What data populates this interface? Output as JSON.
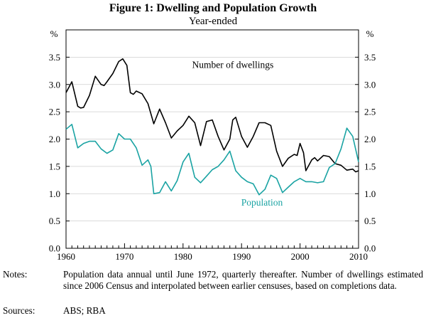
{
  "chart_data": {
    "type": "line",
    "title": "Figure 1: Dwelling and Population Growth",
    "subtitle": "Year-ended",
    "y_unit_left": "%",
    "y_unit_right": "%",
    "ylim": [
      0,
      4
    ],
    "yticks": [
      "0.0",
      "0.5",
      "1.0",
      "1.5",
      "2.0",
      "2.5",
      "3.0",
      "3.5"
    ],
    "xlim": [
      1960,
      2010
    ],
    "xticks": [
      "1960",
      "1970",
      "1980",
      "1990",
      "2000",
      "2010"
    ],
    "grid": true,
    "series": [
      {
        "name": "Number of dwellings",
        "color": "#000000",
        "points": [
          [
            1960,
            2.85
          ],
          [
            1961,
            3.05
          ],
          [
            1962,
            2.6
          ],
          [
            1962.5,
            2.57
          ],
          [
            1963,
            2.58
          ],
          [
            1964,
            2.8
          ],
          [
            1965,
            3.15
          ],
          [
            1966,
            3.0
          ],
          [
            1966.5,
            2.98
          ],
          [
            1967,
            3.05
          ],
          [
            1968,
            3.2
          ],
          [
            1969,
            3.42
          ],
          [
            1969.7,
            3.47
          ],
          [
            1970.4,
            3.35
          ],
          [
            1971,
            2.85
          ],
          [
            1971.5,
            2.82
          ],
          [
            1972,
            2.88
          ],
          [
            1973,
            2.83
          ],
          [
            1974,
            2.65
          ],
          [
            1975,
            2.28
          ],
          [
            1976,
            2.55
          ],
          [
            1977,
            2.3
          ],
          [
            1978,
            2.02
          ],
          [
            1979,
            2.15
          ],
          [
            1980,
            2.25
          ],
          [
            1981,
            2.42
          ],
          [
            1982,
            2.3
          ],
          [
            1983,
            1.88
          ],
          [
            1984,
            2.32
          ],
          [
            1985,
            2.35
          ],
          [
            1986,
            2.05
          ],
          [
            1987,
            1.8
          ],
          [
            1988,
            2.0
          ],
          [
            1988.5,
            2.35
          ],
          [
            1989,
            2.4
          ],
          [
            1990,
            2.05
          ],
          [
            1991,
            1.85
          ],
          [
            1992,
            2.05
          ],
          [
            1993,
            2.3
          ],
          [
            1994,
            2.3
          ],
          [
            1995,
            2.25
          ],
          [
            1996,
            1.78
          ],
          [
            1997,
            1.5
          ],
          [
            1998,
            1.65
          ],
          [
            1999,
            1.72
          ],
          [
            1999.5,
            1.7
          ],
          [
            2000,
            1.92
          ],
          [
            2000.6,
            1.75
          ],
          [
            2001,
            1.42
          ],
          [
            2002,
            1.62
          ],
          [
            2002.5,
            1.66
          ],
          [
            2003,
            1.6
          ],
          [
            2004,
            1.7
          ],
          [
            2005,
            1.68
          ],
          [
            2006,
            1.55
          ],
          [
            2007,
            1.52
          ],
          [
            2008,
            1.43
          ],
          [
            2009,
            1.45
          ],
          [
            2009.5,
            1.4
          ],
          [
            2010,
            1.42
          ]
        ]
      },
      {
        "name": "Population",
        "color": "#1aa3a3",
        "points": [
          [
            1960,
            2.18
          ],
          [
            1961,
            2.27
          ],
          [
            1962,
            1.84
          ],
          [
            1963,
            1.92
          ],
          [
            1964,
            1.96
          ],
          [
            1965,
            1.96
          ],
          [
            1966,
            1.82
          ],
          [
            1967,
            1.74
          ],
          [
            1968,
            1.8
          ],
          [
            1969,
            2.1
          ],
          [
            1970,
            2.0
          ],
          [
            1971,
            2.0
          ],
          [
            1972,
            1.84
          ],
          [
            1973,
            1.52
          ],
          [
            1974,
            1.62
          ],
          [
            1974.5,
            1.5
          ],
          [
            1975,
            1.0
          ],
          [
            1976,
            1.02
          ],
          [
            1977,
            1.22
          ],
          [
            1978,
            1.05
          ],
          [
            1979,
            1.24
          ],
          [
            1980,
            1.58
          ],
          [
            1981,
            1.74
          ],
          [
            1982,
            1.3
          ],
          [
            1983,
            1.2
          ],
          [
            1984,
            1.32
          ],
          [
            1985,
            1.44
          ],
          [
            1986,
            1.5
          ],
          [
            1987,
            1.62
          ],
          [
            1988,
            1.78
          ],
          [
            1989,
            1.42
          ],
          [
            1990,
            1.3
          ],
          [
            1991,
            1.22
          ],
          [
            1992,
            1.18
          ],
          [
            1993,
            0.98
          ],
          [
            1994,
            1.08
          ],
          [
            1995,
            1.34
          ],
          [
            1996,
            1.28
          ],
          [
            1997,
            1.02
          ],
          [
            1998,
            1.12
          ],
          [
            1999,
            1.22
          ],
          [
            2000,
            1.28
          ],
          [
            2001,
            1.22
          ],
          [
            2002,
            1.22
          ],
          [
            2003,
            1.2
          ],
          [
            2004,
            1.22
          ],
          [
            2005,
            1.48
          ],
          [
            2006,
            1.55
          ],
          [
            2007,
            1.82
          ],
          [
            2008,
            2.2
          ],
          [
            2009,
            2.05
          ],
          [
            2010,
            1.58
          ]
        ]
      }
    ],
    "annotations": [
      {
        "text": "Number of dwellings",
        "x": 1988.5,
        "y": 3.3
      },
      {
        "text": "Population",
        "x": 1993.5,
        "y": 0.78
      }
    ]
  },
  "notes": {
    "label": "Notes:",
    "text": "Population data annual until June 1972, quarterly thereafter. Number of dwellings estimated since 2006 Census and interpolated between earlier censuses, based on completions data."
  },
  "sources": {
    "label": "Sources:",
    "text": "ABS; RBA"
  }
}
